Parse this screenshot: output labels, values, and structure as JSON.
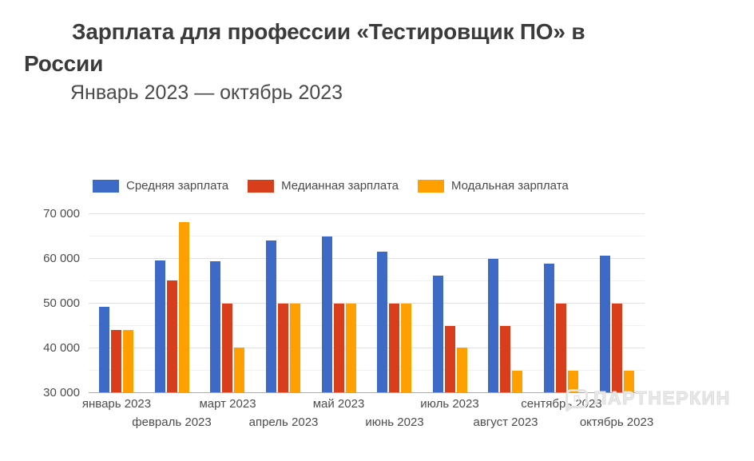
{
  "header": {
    "title": "Зарплата для профессии «Тестировщик ПО» в России",
    "subtitle": "Январь 2023 — октябрь 2023"
  },
  "watermark": {
    "text": "ПАРТНЕРКИН"
  },
  "colors": {
    "average": "#3c6ac6",
    "median": "#d93e1c",
    "modal": "#ffa000",
    "title_text": "#3b3b3b",
    "axis_text": "#4c4c4c",
    "grid_major": "#e0e0e0",
    "grid_minor": "#f1f1f1",
    "baseline": "#ababab"
  },
  "chart_data": {
    "type": "bar",
    "title": "Зарплата для профессии «Тестировщик ПО» в России",
    "subtitle": "Январь 2023 — октябрь 2023",
    "categories": [
      "январь 2023",
      "февраль 2023",
      "март 2023",
      "апрель 2023",
      "май 2023",
      "июнь 2023",
      "июль 2023",
      "август 2023",
      "сентябрь 2023",
      "октябрь 2023"
    ],
    "series": [
      {
        "key": "average",
        "name": "Средняя зарплата",
        "color": "#3c6ac6",
        "values": [
          49100,
          59400,
          59200,
          63900,
          64900,
          61500,
          56100,
          59900,
          58800,
          60500
        ]
      },
      {
        "key": "median",
        "name": "Медианная зарплата",
        "color": "#d93e1c",
        "values": [
          44000,
          55000,
          49800,
          49800,
          49800,
          49800,
          44900,
          44900,
          49800,
          49800
        ]
      },
      {
        "key": "modal",
        "name": "Модальная зарплата",
        "color": "#ffa000",
        "values": [
          44000,
          68000,
          40000,
          49800,
          49800,
          49800,
          40000,
          34800,
          34800,
          34800
        ]
      }
    ],
    "xlabel": "",
    "ylabel": "",
    "ylim": [
      30000,
      70000
    ],
    "grid": true,
    "legend_position": "top",
    "y_ticks": [
      {
        "value": 70000,
        "label": "70 000",
        "major": true
      },
      {
        "value": 65000,
        "label": "",
        "major": false
      },
      {
        "value": 60000,
        "label": "60 000",
        "major": true
      },
      {
        "value": 55000,
        "label": "",
        "major": false
      },
      {
        "value": 50000,
        "label": "50 000",
        "major": true
      },
      {
        "value": 45000,
        "label": "",
        "major": false
      },
      {
        "value": 40000,
        "label": "40 000",
        "major": true
      },
      {
        "value": 35000,
        "label": "",
        "major": false
      },
      {
        "value": 30000,
        "label": "30 000",
        "major": true
      }
    ]
  }
}
